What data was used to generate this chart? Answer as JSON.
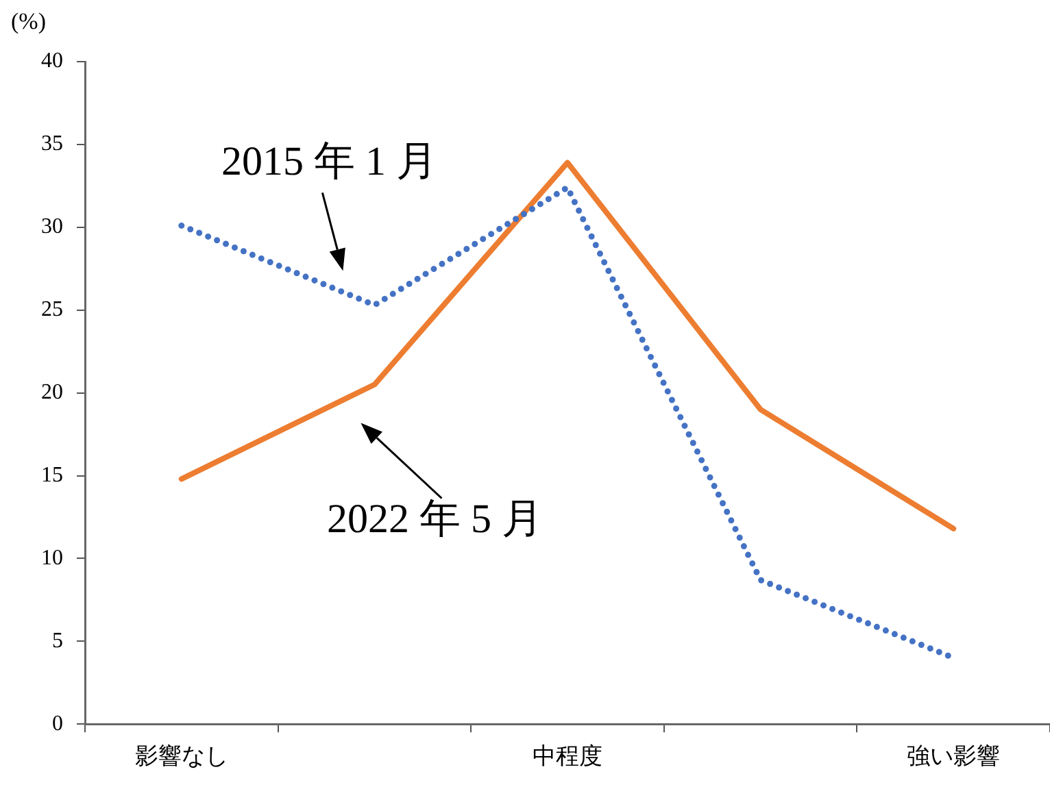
{
  "chart_data": {
    "type": "line",
    "ylabel": "(%)",
    "categories": [
      "影響なし",
      null,
      "中程度",
      null,
      "強い影響"
    ],
    "series": [
      {
        "name": "2015 年 1 月",
        "color": "#4472c4",
        "line_style": "dotted",
        "values": [
          30.1,
          25.3,
          32.4,
          8.7,
          4.0
        ]
      },
      {
        "name": "2022 年 5 月",
        "color": "#ed7d31",
        "line_style": "solid",
        "values": [
          14.8,
          20.5,
          33.9,
          19.0,
          11.8
        ]
      }
    ],
    "ylim": [
      0,
      40
    ],
    "yticks": [
      0,
      5,
      10,
      15,
      20,
      25,
      30,
      35,
      40
    ],
    "grid": false,
    "legend": false,
    "marker": "none"
  }
}
